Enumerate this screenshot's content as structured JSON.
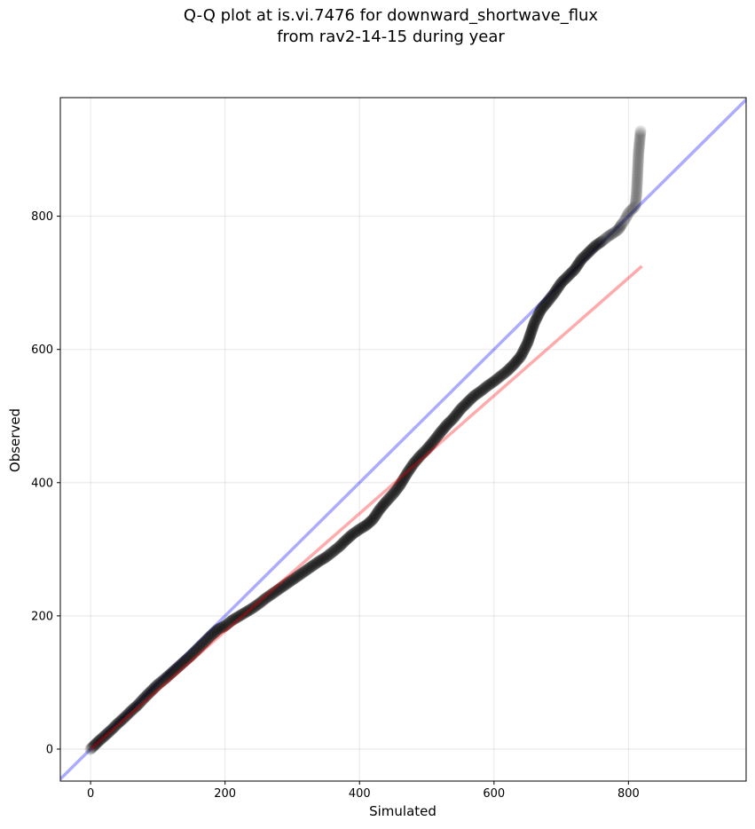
{
  "chart_data": {
    "type": "scatter",
    "title_line1": "Q-Q plot at is.vi.7476 for downward_shortwave_flux",
    "title_line2": "from rav2-14-15 during year",
    "xlabel": "Simulated",
    "ylabel": "Observed",
    "xlim": [
      -45,
      975
    ],
    "ylim": [
      -48,
      978
    ],
    "xticks": [
      0,
      200,
      400,
      600,
      800
    ],
    "yticks": [
      0,
      200,
      400,
      600,
      800
    ],
    "grid": true,
    "reference_line": {
      "name": "1:1 line",
      "color": "#0000ff",
      "alpha": 0.33,
      "x": [
        -45,
        975
      ],
      "y": [
        -45,
        975
      ]
    },
    "fit_line": {
      "name": "linear fit",
      "color": "#ff0000",
      "alpha": 0.33,
      "x": [
        0,
        820
      ],
      "y": [
        0,
        725
      ]
    },
    "quantiles": {
      "x": [
        0,
        2,
        5,
        10,
        20,
        30,
        40,
        50,
        60,
        70,
        80,
        90,
        100,
        110,
        120,
        130,
        140,
        150,
        160,
        170,
        180,
        190,
        200,
        210,
        220,
        230,
        240,
        250,
        260,
        270,
        280,
        290,
        300,
        310,
        320,
        330,
        340,
        350,
        360,
        370,
        380,
        390,
        400,
        410,
        420,
        430,
        440,
        450,
        460,
        470,
        480,
        490,
        500,
        510,
        520,
        530,
        540,
        550,
        560,
        570,
        580,
        590,
        600,
        610,
        620,
        630,
        640,
        650,
        660,
        670,
        680,
        690,
        700,
        710,
        720,
        730,
        740,
        750,
        760,
        770,
        778,
        785,
        790,
        795,
        800,
        805,
        810,
        812,
        815,
        818
      ],
      "y": [
        0,
        2,
        5,
        10,
        19,
        28,
        38,
        47,
        57,
        66,
        77,
        87,
        97,
        105,
        114,
        123,
        132,
        141,
        151,
        161,
        171,
        180,
        185,
        193,
        199,
        205,
        211,
        218,
        226,
        233,
        240,
        247,
        254,
        261,
        268,
        275,
        282,
        288,
        296,
        304,
        314,
        323,
        330,
        336,
        345,
        360,
        372,
        383,
        396,
        413,
        428,
        440,
        450,
        462,
        475,
        487,
        497,
        510,
        520,
        530,
        537,
        545,
        552,
        560,
        568,
        578,
        590,
        610,
        640,
        660,
        672,
        685,
        700,
        710,
        720,
        735,
        745,
        755,
        762,
        770,
        775,
        780,
        788,
        795,
        805,
        810,
        815,
        833,
        895,
        928
      ]
    }
  }
}
